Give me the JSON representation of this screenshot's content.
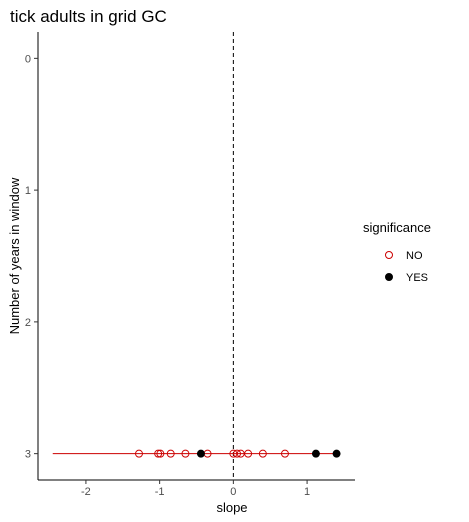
{
  "chart_data": {
    "type": "scatter",
    "title": "tick adults in grid GC",
    "xlabel": "slope",
    "ylabel": "Number of years in window",
    "xlim": [
      -2.65,
      1.65
    ],
    "ylim": [
      3.2,
      -0.2
    ],
    "y_reversed": true,
    "x_ticks": [
      "-2",
      "-1",
      "0",
      "1"
    ],
    "x_tick_values": [
      -2,
      -1,
      0,
      1
    ],
    "y_ticks": [
      "0",
      "1",
      "2",
      "3"
    ],
    "y_tick_values": [
      0,
      1,
      2,
      3
    ],
    "reference_line": {
      "x": 0,
      "style": "dashed"
    },
    "range_line": {
      "y": 3,
      "x_from": -2.45,
      "x_to": 1.42,
      "color": "#cc0000"
    },
    "grid": false,
    "legend": {
      "title": "significance",
      "position": "right",
      "entries": [
        {
          "label": "NO",
          "marker": "open-circle",
          "color": "#cc0000"
        },
        {
          "label": "YES",
          "marker": "filled-circle",
          "color": "#000000"
        }
      ]
    },
    "series": [
      {
        "name": "NO",
        "color": "#cc0000",
        "points": [
          {
            "x": -1.28,
            "y": 3
          },
          {
            "x": -1.02,
            "y": 3
          },
          {
            "x": -0.99,
            "y": 3
          },
          {
            "x": -0.85,
            "y": 3
          },
          {
            "x": -0.65,
            "y": 3
          },
          {
            "x": -0.35,
            "y": 3
          },
          {
            "x": 0.0,
            "y": 3
          },
          {
            "x": 0.05,
            "y": 3
          },
          {
            "x": 0.1,
            "y": 3
          },
          {
            "x": 0.2,
            "y": 3
          },
          {
            "x": 0.4,
            "y": 3
          },
          {
            "x": 0.7,
            "y": 3
          }
        ]
      },
      {
        "name": "YES",
        "color": "#000000",
        "points": [
          {
            "x": -0.44,
            "y": 3
          },
          {
            "x": 1.12,
            "y": 3
          },
          {
            "x": 1.4,
            "y": 3
          }
        ]
      }
    ]
  }
}
